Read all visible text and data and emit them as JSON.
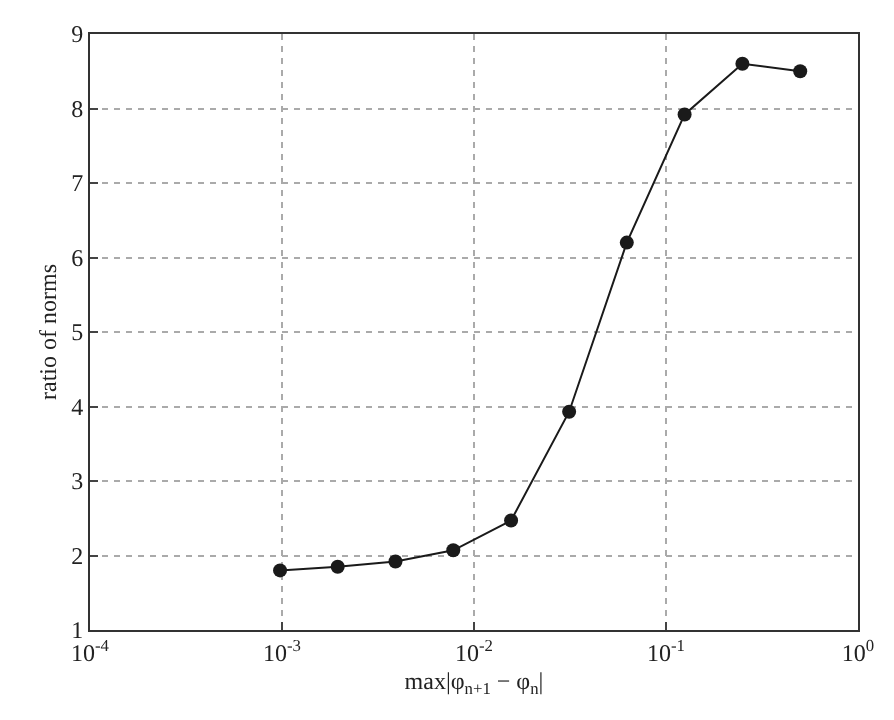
{
  "chart_data": {
    "type": "line",
    "xlabel": "max|φ$_{n+1}$ − φ$_{n}$|",
    "ylabel": "ratio of norms",
    "x": [
      0.000977,
      0.00195,
      0.0039,
      0.0078,
      0.0156,
      0.0313,
      0.0625,
      0.125,
      0.25,
      0.5
    ],
    "series": [
      {
        "color": "#1a1a1a",
        "values": [
          1.8,
          1.85,
          1.92,
          2.07,
          2.47,
          3.93,
          6.2,
          7.92,
          8.6,
          8.5
        ]
      }
    ],
    "log": "x",
    "xlim": [
      0.0001,
      1
    ],
    "xticks": [
      {
        "value": 0.0001,
        "label": "10$^{-4}$"
      },
      {
        "value": 0.001,
        "label": "10$^{-3}$"
      },
      {
        "value": 0.01,
        "label": "10$^{-2}$"
      },
      {
        "value": 0.1,
        "label": "10$^{-1}$"
      },
      {
        "value": 1,
        "label": "10$^{0}$"
      }
    ],
    "ylim": [
      1,
      9
    ],
    "yticks": [
      1,
      2,
      3,
      4,
      5,
      6,
      7,
      8,
      9
    ],
    "grid": true,
    "marker": "circle",
    "line_style": "solid"
  }
}
